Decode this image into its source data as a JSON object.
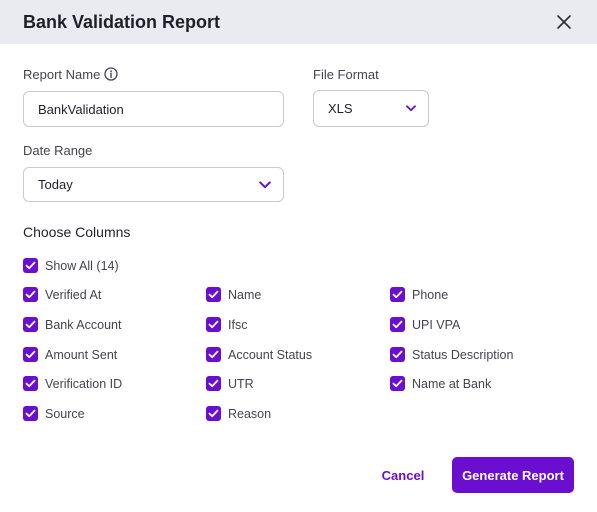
{
  "dialog": {
    "title": "Bank Validation Report",
    "close_icon": "close-icon"
  },
  "form": {
    "report_name_label": "Report Name",
    "report_name_value": "BankValidation",
    "info_icon": "info-icon",
    "file_format_label": "File Format",
    "file_format_value": "XLS",
    "date_range_label": "Date Range",
    "date_range_value": "Today"
  },
  "columns": {
    "title": "Choose Columns",
    "show_all": {
      "label": "Show All (14)",
      "checked": true
    },
    "items": [
      {
        "label": "Verified At",
        "checked": true
      },
      {
        "label": "Name",
        "checked": true
      },
      {
        "label": "Phone",
        "checked": true
      },
      {
        "label": "Bank Account",
        "checked": true
      },
      {
        "label": "Ifsc",
        "checked": true
      },
      {
        "label": "UPI VPA",
        "checked": true
      },
      {
        "label": "Amount Sent",
        "checked": true
      },
      {
        "label": "Account Status",
        "checked": true
      },
      {
        "label": "Status Description",
        "checked": true
      },
      {
        "label": "Verification ID",
        "checked": true
      },
      {
        "label": "UTR",
        "checked": true
      },
      {
        "label": "Name at Bank",
        "checked": true
      },
      {
        "label": "Source",
        "checked": true
      },
      {
        "label": "Reason",
        "checked": true
      }
    ]
  },
  "actions": {
    "cancel_label": "Cancel",
    "generate_label": "Generate Report"
  },
  "colors": {
    "accent": "#6a0fd0",
    "header_bg": "#e9ebf1"
  }
}
